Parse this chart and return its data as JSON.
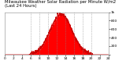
{
  "title": "Milwaukee Weather Solar Radiation per Minute W/m2 (Last 24 Hours)",
  "bg_color": "#ffffff",
  "plot_bg": "#ffffff",
  "fill_color": "#ff0000",
  "line_color": "#cc0000",
  "grid_color": "#888888",
  "num_points": 1440,
  "peak_hour": 13.0,
  "peak_value": 950,
  "start_hour": 0,
  "end_hour": 24,
  "ylim": [
    0,
    1000
  ],
  "ylabel_values": [
    "",
    "200",
    "400",
    "600",
    "800",
    "1k"
  ],
  "ytick_vals": [
    0,
    200,
    400,
    600,
    800,
    1000
  ],
  "x_tick_hours": [
    0,
    2,
    4,
    6,
    8,
    10,
    12,
    14,
    16,
    18,
    20,
    22,
    24
  ],
  "vgrid_hours": [
    6,
    8,
    10,
    12,
    14,
    16,
    18,
    20
  ],
  "title_fontsize": 3.8,
  "tick_fontsize": 3.2,
  "linewidth": 0.3,
  "sigma": 2.5,
  "sun_start": 5.5,
  "sun_end": 20.5
}
